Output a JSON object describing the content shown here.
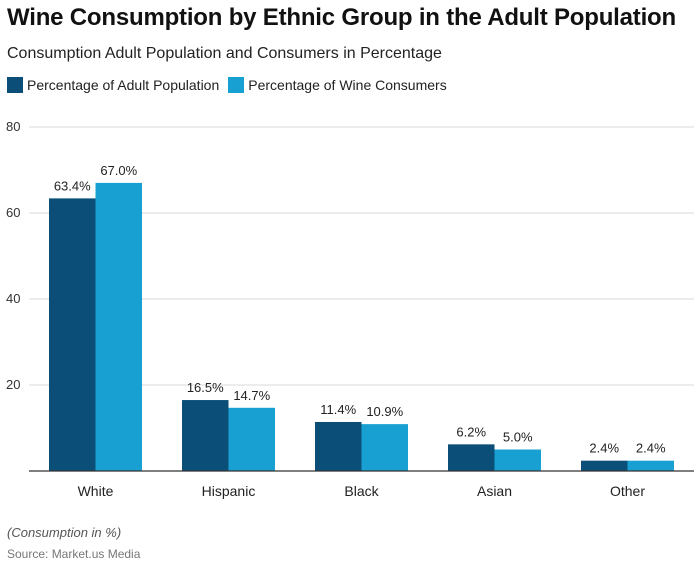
{
  "title": "Wine Consumption by Ethnic Group in the Adult Population",
  "subtitle": "Consumption Adult Population and Consumers in Percentage",
  "note": "(Consumption in %)",
  "source": "Source: Market.us Media",
  "colors": {
    "series_1": "#0b4f79",
    "series_2": "#18a0d2",
    "grid": "#d9d9d9",
    "axis": "#333333"
  },
  "legend": [
    {
      "label": "Percentage of Adult Population",
      "color": "#0b4f79"
    },
    {
      "label": "Percentage of Wine Consumers",
      "color": "#18a0d2"
    }
  ],
  "chart_data": {
    "type": "bar",
    "title": "Wine Consumption by Ethnic Group in the Adult Population",
    "subtitle": "Consumption Adult Population and Consumers in Percentage",
    "xlabel": "",
    "ylabel": "",
    "categories": [
      "White",
      "Hispanic",
      "Black",
      "Asian",
      "Other"
    ],
    "series": [
      {
        "name": "Percentage of Adult Population",
        "values": [
          63.4,
          16.5,
          11.4,
          6.2,
          2.4
        ],
        "labels": [
          "63.4%",
          "16.5%",
          "11.4%",
          "6.2%",
          "2.4%"
        ]
      },
      {
        "name": "Percentage of Wine Consumers",
        "values": [
          67.0,
          14.7,
          10.9,
          5.0,
          2.4
        ],
        "labels": [
          "67.0%",
          "14.7%",
          "10.9%",
          "5.0%",
          "2.4%"
        ]
      }
    ],
    "ylim": [
      0,
      80
    ],
    "yticks": [
      20,
      40,
      60,
      80
    ],
    "ytick_labels": [
      "20",
      "40",
      "60",
      "80"
    ],
    "grid": true,
    "legend_position": "top-left"
  }
}
